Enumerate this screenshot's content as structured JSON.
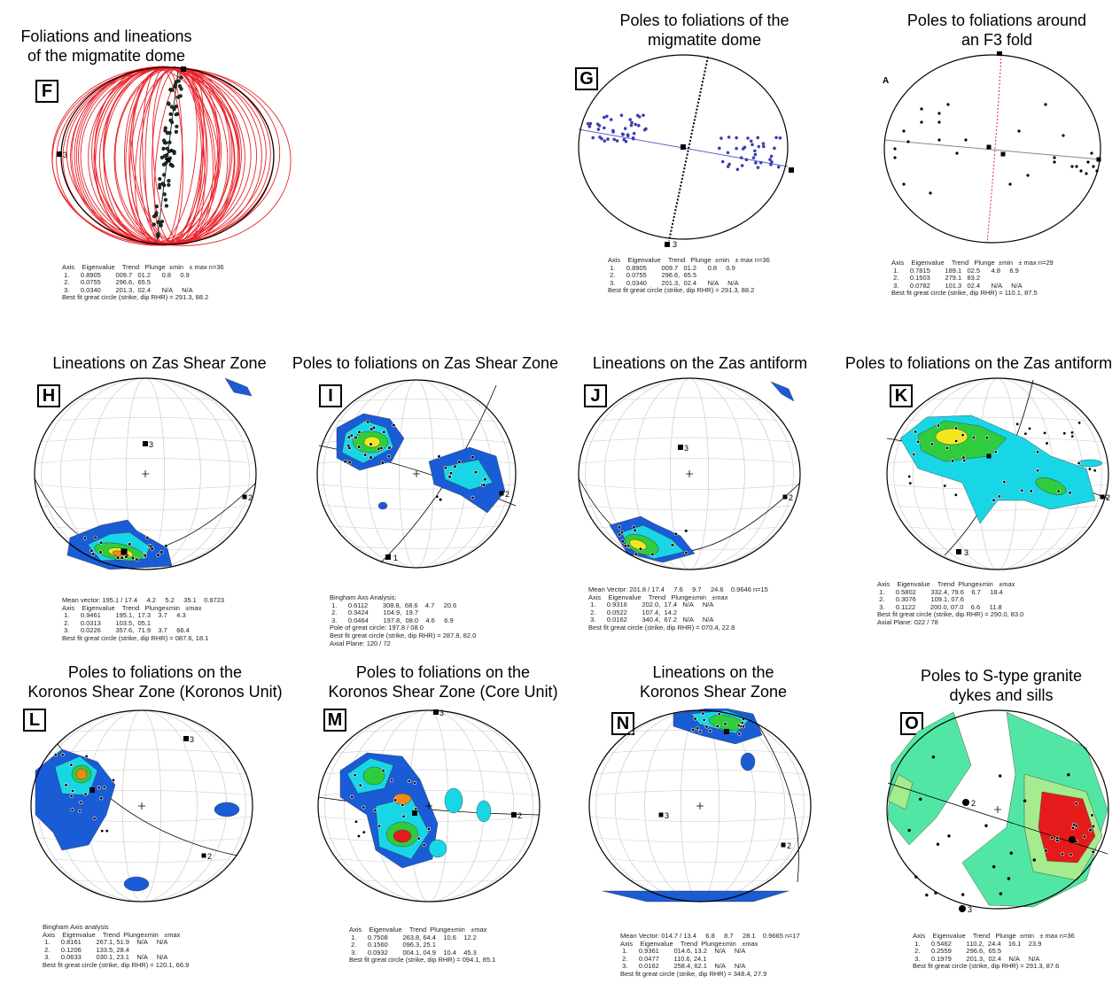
{
  "panels": [
    {
      "id": "F",
      "title": "Foliations and lineations\n of the migmatite dome",
      "stats": "Axis    Eigenvalue    Trend   Plunge  ±min   ± max n=36\n 1.      0.8905        009.7   01.2      0.8     0.9\n 2.      0.0755        296.6,  65.5\n 3.      0.0340        201.3,  02.4      N/A     N/A\nBest fit great circle (strike, dip RHR) = 291.3, 88.2"
    },
    {
      "id": "G",
      "title": "Poles to foliations of the\nmigmatite dome",
      "stats": "Axis    Eigenvalue    Trend   Plunge  ±min   ± max n=36\n 1.      0.8905        009.7   01.2      0.8     0.9\n 2.      0.0755        296.6,  65.5\n 3.      0.0340        201.3,  02.4      N/A     N/A\nBest fit great circle (strike, dip RHR) = 291.3, 88.2"
    },
    {
      "id": "A",
      "title": "Poles to foliations around\nan F3 fold",
      "stats": "Axis    Eigenvalue    Trend   Plunge  ±min   ± max n=29\n 1.      0.7815        189.1   02.5      4.8     6.9\n 2.      0.1503        279.1   83.2\n 3.      0.0782        101.3   02.4      N/A     N/A\nBest fit great circle (strike, dip RHR) = 110.1, 87.5"
    },
    {
      "id": "H",
      "title": "Lineations on Zas Shear Zone",
      "stats": "Mean vector: 195.1 / 17.4     4.2     5.2     35.1    0.9723\nAxis    Eigenvalue    Trend   Plunge±min   ±max\n 1.      0.9461        195.1,  17.3    3.7     4.3\n 2.      0.0313        103.5,  05.1\n 3.      0.0226        357.6,  71.9    3.7     66.4\nBest fit great circle (strike, dip RHR) = 087.6, 18.1"
    },
    {
      "id": "I",
      "title": "Poles to foliations on Zas Shear Zone",
      "stats": "Bingham Axs Analysis:\n 1.      0.6112        308.8,  68.6    4.7     20.6\n 2.      0.3424        104.9,  19.7\n 3.      0.0464        197.8,  08.0    4.6     6.9\nPole of great circle: 197.8 / 08.0\nBest fit great circle (strike, dip RHR) = 287.8, 82.0\nAxial Plane: 120 / 72"
    },
    {
      "id": "J",
      "title": "Lineations on the Zas antiform",
      "stats": "Mean Vector: 201.8 / 17.4     7.6     9.7     24.6    0.9646 n=15\nAxis    Eigenvalue    Trend   Plunge±min   ±max\n 1.      0.9316        202.0,  17.4   N/A     N/A\n 2.      0.0522        107.4,  14.2\n 3.      0.0162        340.4,  67.2   N/A     N/A\nBest fit great circle (strike, dip RHR) = 070.4, 22.8"
    },
    {
      "id": "K",
      "title": "Poles to foliations on the Zas antiform",
      "stats": "Axis    Eigenvalue    Trend  Plunge±min   ±max\n 1.      0.5802        332.4, 79.6    6.7     18.4\n 2.      0.3076        109.1, 07.6\n 3.      0.1122        200.0, 07.0    6.6     11.8\nBest fit great circle (strike, dip RHR) = 290.0, 83.0\nAxial Plane: 022 / 78"
    },
    {
      "id": "L",
      "title": "Poles to foliations on the\nKoronos Shear Zone (Koronos Unit)",
      "stats": "Bingham Axis analysis\nAxis    Eigenvalue    Trend  Plunge±min   ±max\n 1.      0.8161        267.1, 51.9    N/A     N/A\n 2.      0.1206        133.5, 28.4\n 3.      0.0633        030.1, 23.1    N/A     N/A\nBest fit great circle (strike, dip RHR) = 120.1, 66.9"
    },
    {
      "id": "M",
      "title": "Poles to foliations on the\nKoronos Shear Zone (Core Unit)",
      "stats": "Axis    Eigenvalue    Trend  Plunge±min   ±max\n 1.      0.7508        263.8, 64.4    10.6    12.2\n 2.      0.1560        096.3, 25.1\n 3.      0.0932        004.1, 04.9    10.4    45.3\nBest fit great circle (strike, dip RHR) = 094.1, 85.1"
    },
    {
      "id": "N",
      "title": "Lineations on the\nKoronos Shear Zone",
      "stats": "Mean Vector: 014.7 / 13.4     6.8     8.7     28.1    0.9665 n=17\nAxis    Eigenvalue    Trend  Plunge±min   ±max\n 1.      0.9361        014.6, 13.2    N/A     N/A\n 2.      0.0477        110.6, 24.1\n 3.      0.0162        258.4, 62.1    N/A     N/A\nBest fit great circle (strike, dip RHR) = 348.4, 27.9"
    },
    {
      "id": "O",
      "title": "Poles to S-type granite\ndykes and sills",
      "stats": "Axis    Eigenvalue    Trend   Plunge  ±min   ± max n=36\n 1.      0.5462        110.2,  24.4    16.1    23.9\n 2.      0.2559        296.6,  65.5\n 3.      0.1979        201.3,  02.4    N/A     N/A\nBest fit great circle (strike, dip RHR) = 291.3, 87.6"
    }
  ],
  "axis_labels": {
    "one": "1",
    "two": "2",
    "three": "3"
  },
  "colors": {
    "greatcircle": "#e8242b",
    "bluepole": "#3b3fb0",
    "contour_blue": "#1a5bd6",
    "contour_cyan": "#19d6e6",
    "contour_green": "#2fcc3e",
    "contour_yellow": "#f1e81a",
    "contour_orange": "#f08a16",
    "contour_red": "#e51b1b",
    "light_green": "#a4ec8e",
    "mint": "#52e6a4"
  }
}
